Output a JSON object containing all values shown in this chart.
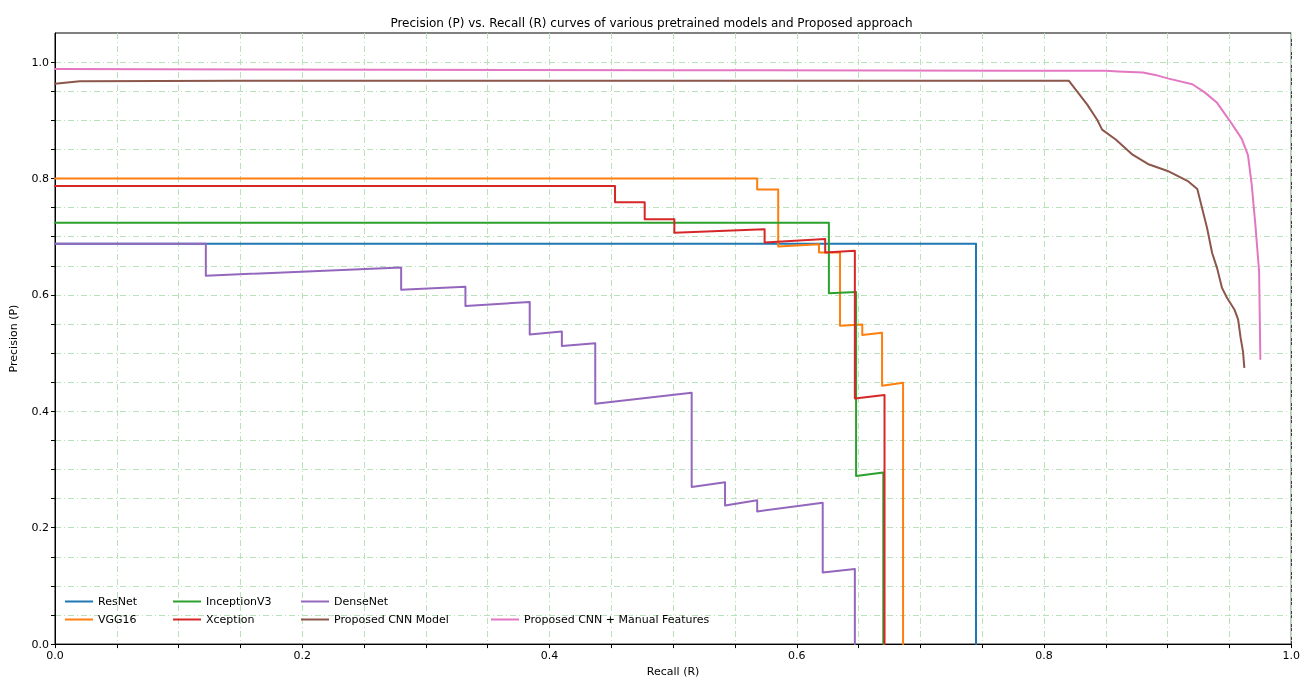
{
  "chart_data": {
    "type": "line",
    "title": "Precision (P) vs. Recall (R) curves of various pretrained models and Proposed approach",
    "xlabel": "Recall (R)",
    "ylabel": "Precision (P)",
    "xlim": [
      0,
      1
    ],
    "ylim": [
      0,
      1.05
    ],
    "xticks": [
      {
        "value": 0,
        "label": "0.0"
      },
      {
        "value": 0.05,
        "label": null
      },
      {
        "value": 0.1,
        "label": null
      },
      {
        "value": 0.15,
        "label": null
      },
      {
        "value": 0.2,
        "label": "0.2"
      },
      {
        "value": 0.25,
        "label": null
      },
      {
        "value": 0.3,
        "label": null
      },
      {
        "value": 0.35,
        "label": null
      },
      {
        "value": 0.4,
        "label": "0.4"
      },
      {
        "value": 0.45,
        "label": null
      },
      {
        "value": 0.5,
        "label": null
      },
      {
        "value": 0.55,
        "label": null
      },
      {
        "value": 0.6,
        "label": "0.6"
      },
      {
        "value": 0.65,
        "label": null
      },
      {
        "value": 0.7,
        "label": null
      },
      {
        "value": 0.75,
        "label": null
      },
      {
        "value": 0.8,
        "label": "0.8"
      },
      {
        "value": 0.85,
        "label": null
      },
      {
        "value": 0.9,
        "label": null
      },
      {
        "value": 0.95,
        "label": null
      },
      {
        "value": 1,
        "label": "1.0"
      }
    ],
    "yticks": [
      {
        "value": 0,
        "label": "0.0"
      },
      {
        "value": 0.05,
        "label": null
      },
      {
        "value": 0.1,
        "label": null
      },
      {
        "value": 0.15,
        "label": null
      },
      {
        "value": 0.2,
        "label": "0.2"
      },
      {
        "value": 0.25,
        "label": null
      },
      {
        "value": 0.3,
        "label": null
      },
      {
        "value": 0.35,
        "label": null
      },
      {
        "value": 0.4,
        "label": "0.4"
      },
      {
        "value": 0.45,
        "label": null
      },
      {
        "value": 0.5,
        "label": null
      },
      {
        "value": 0.55,
        "label": null
      },
      {
        "value": 0.6,
        "label": "0.6"
      },
      {
        "value": 0.65,
        "label": null
      },
      {
        "value": 0.7,
        "label": null
      },
      {
        "value": 0.75,
        "label": null
      },
      {
        "value": 0.8,
        "label": "0.8"
      },
      {
        "value": 0.85,
        "label": null
      },
      {
        "value": 0.9,
        "label": null
      },
      {
        "value": 0.95,
        "label": null
      },
      {
        "value": 1,
        "label": "1.0"
      }
    ],
    "grid": true,
    "legend": "bottom left",
    "marker": "none",
    "line_style": "solid",
    "series": [
      {
        "name": "ResNet",
        "color": "#1f77b4",
        "x": [
          0,
          0.745,
          0.745
        ],
        "values": [
          0.688,
          0.688,
          0
        ]
      },
      {
        "name": "VGG16",
        "color": "#ff7f0e",
        "x": [
          0,
          0.568,
          0.568,
          0.585,
          0.585,
          0.618,
          0.618,
          0.635,
          0.635,
          0.653,
          0.653,
          0.669,
          0.669,
          0.686,
          0.686
        ],
        "values": [
          0.8,
          0.8,
          0.781,
          0.781,
          0.683,
          0.687,
          0.673,
          0.673,
          0.547,
          0.549,
          0.531,
          0.535,
          0.444,
          0.449,
          0
        ]
      },
      {
        "name": "InceptionV3",
        "color": "#2ca02c",
        "x": [
          0,
          0.626,
          0.626,
          0.648,
          0.648,
          0.67,
          0.67
        ],
        "values": [
          0.724,
          0.724,
          0.603,
          0.605,
          0.289,
          0.295,
          0
        ]
      },
      {
        "name": "Xception",
        "color": "#d62728",
        "x": [
          0,
          0.453,
          0.453,
          0.477,
          0.477,
          0.501,
          0.501,
          0.574,
          0.574,
          0.623,
          0.623,
          0.647,
          0.647,
          0.671,
          0.671
        ],
        "values": [
          0.787,
          0.787,
          0.759,
          0.759,
          0.73,
          0.73,
          0.707,
          0.713,
          0.69,
          0.696,
          0.673,
          0.676,
          0.422,
          0.428,
          0
        ]
      },
      {
        "name": "DenseNet",
        "color": "#9467bd",
        "x": [
          0,
          0.122,
          0.122,
          0.28,
          0.28,
          0.332,
          0.332,
          0.384,
          0.384,
          0.41,
          0.41,
          0.437,
          0.437,
          0.515,
          0.515,
          0.542,
          0.542,
          0.568,
          0.568,
          0.621,
          0.621,
          0.647,
          0.647
        ],
        "values": [
          0.688,
          0.688,
          0.633,
          0.647,
          0.609,
          0.614,
          0.581,
          0.588,
          0.532,
          0.537,
          0.512,
          0.517,
          0.413,
          0.432,
          0.27,
          0.278,
          0.238,
          0.247,
          0.228,
          0.243,
          0.123,
          0.129,
          0
        ]
      },
      {
        "name": "Proposed CNN Model",
        "color": "#8c564b",
        "x": [
          0,
          0.02,
          0.15,
          0.82,
          0.835,
          0.843,
          0.847,
          0.858,
          0.871,
          0.884,
          0.9,
          0.916,
          0.924,
          0.926,
          0.932,
          0.936,
          0.94,
          0.944,
          0.948,
          0.954,
          0.957,
          0.959,
          0.961,
          0.962
        ],
        "values": [
          0.963,
          0.967,
          0.968,
          0.968,
          0.927,
          0.901,
          0.884,
          0.867,
          0.842,
          0.825,
          0.813,
          0.796,
          0.782,
          0.765,
          0.714,
          0.672,
          0.646,
          0.612,
          0.595,
          0.575,
          0.558,
          0.527,
          0.502,
          0.476
        ]
      },
      {
        "name": "Proposed CNN + Manual Features",
        "color": "#e377c2",
        "x": [
          0,
          0.5,
          0.85,
          0.86,
          0.88,
          0.89,
          0.9,
          0.92,
          0.93,
          0.94,
          0.95,
          0.96,
          0.965,
          0.968,
          0.971,
          0.974,
          0.975
        ],
        "values": [
          0.988,
          0.986,
          0.985,
          0.984,
          0.982,
          0.978,
          0.972,
          0.962,
          0.948,
          0.93,
          0.9,
          0.868,
          0.84,
          0.79,
          0.72,
          0.64,
          0.49
        ]
      }
    ]
  }
}
